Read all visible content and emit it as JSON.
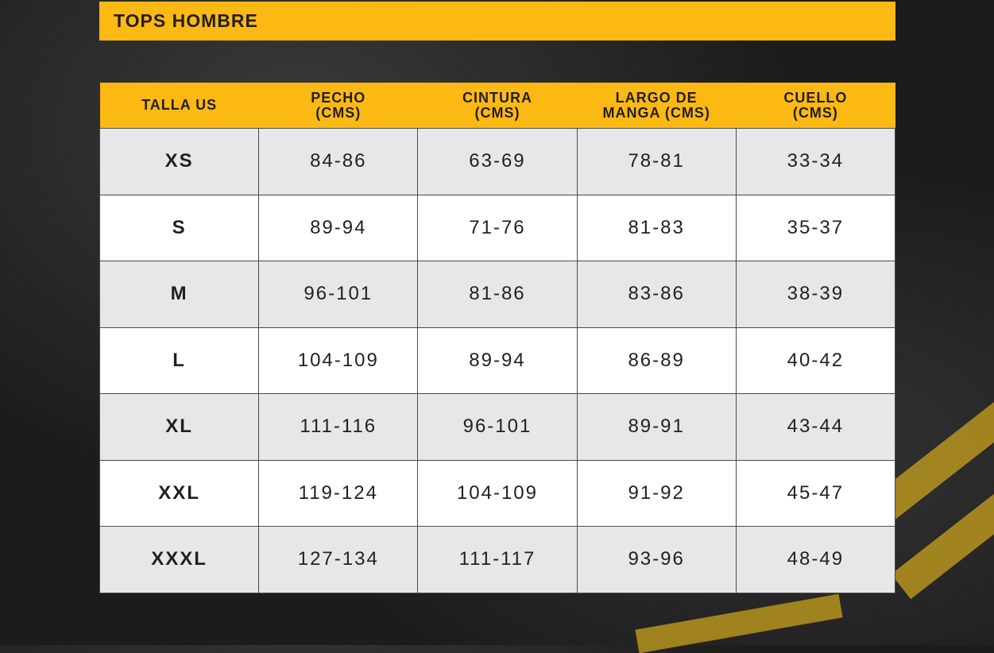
{
  "title": "TOPS HOMBRE",
  "colors": {
    "accent": "#fdb913",
    "row_alt": "#e6e7e8",
    "text": "#231f20"
  },
  "table": {
    "headers": [
      "TALLA US",
      "PECHO\n(CMS)",
      "CINTURA\n(CMS)",
      "LARGO DE\nMANGA (CMS)",
      "CUELLO\n(CMS)"
    ],
    "rows": [
      [
        "XS",
        "84-86",
        "63-69",
        "78-81",
        "33-34"
      ],
      [
        "S",
        "89-94",
        "71-76",
        "81-83",
        "35-37"
      ],
      [
        "M",
        "96-101",
        "81-86",
        "83-86",
        "38-39"
      ],
      [
        "L",
        "104-109",
        "89-94",
        "86-89",
        "40-42"
      ],
      [
        "XL",
        "111-116",
        "96-101",
        "89-91",
        "43-44"
      ],
      [
        "XXL",
        "119-124",
        "104-109",
        "91-92",
        "45-47"
      ],
      [
        "XXXL",
        "127-134",
        "111-117",
        "93-96",
        "48-49"
      ]
    ]
  }
}
